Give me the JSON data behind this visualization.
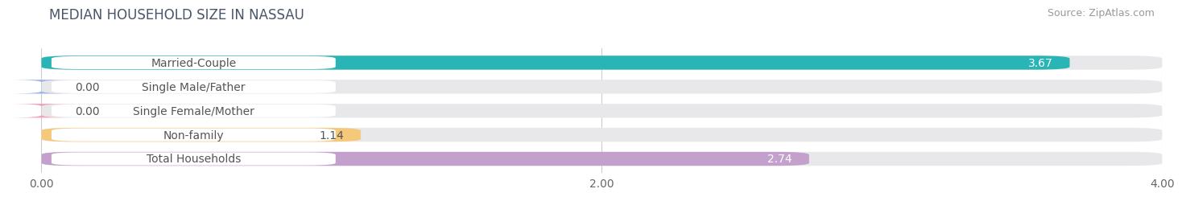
{
  "title": "MEDIAN HOUSEHOLD SIZE IN NASSAU",
  "source": "Source: ZipAtlas.com",
  "categories": [
    "Married-Couple",
    "Single Male/Father",
    "Single Female/Mother",
    "Non-family",
    "Total Households"
  ],
  "values": [
    3.67,
    0.0,
    0.0,
    1.14,
    2.74
  ],
  "bar_colors": [
    "#29b5b5",
    "#9db4e8",
    "#f2a0b8",
    "#f5c87a",
    "#c4a0cc"
  ],
  "value_inside_color": [
    "#ffffff",
    "#555555",
    "#555555",
    "#555555",
    "#ffffff"
  ],
  "xlim": [
    0,
    4.0
  ],
  "xticks": [
    0.0,
    2.0,
    4.0
  ],
  "xticklabels": [
    "0.00",
    "2.00",
    "4.00"
  ],
  "background_color": "#ffffff",
  "bar_background": "#e8e8eb",
  "title_color": "#4a5568",
  "source_color": "#999999",
  "label_text_color": "#555555",
  "title_fontsize": 12,
  "source_fontsize": 9,
  "label_fontsize": 10,
  "value_fontsize": 10,
  "bar_height": 0.58,
  "bar_gap": 0.12
}
